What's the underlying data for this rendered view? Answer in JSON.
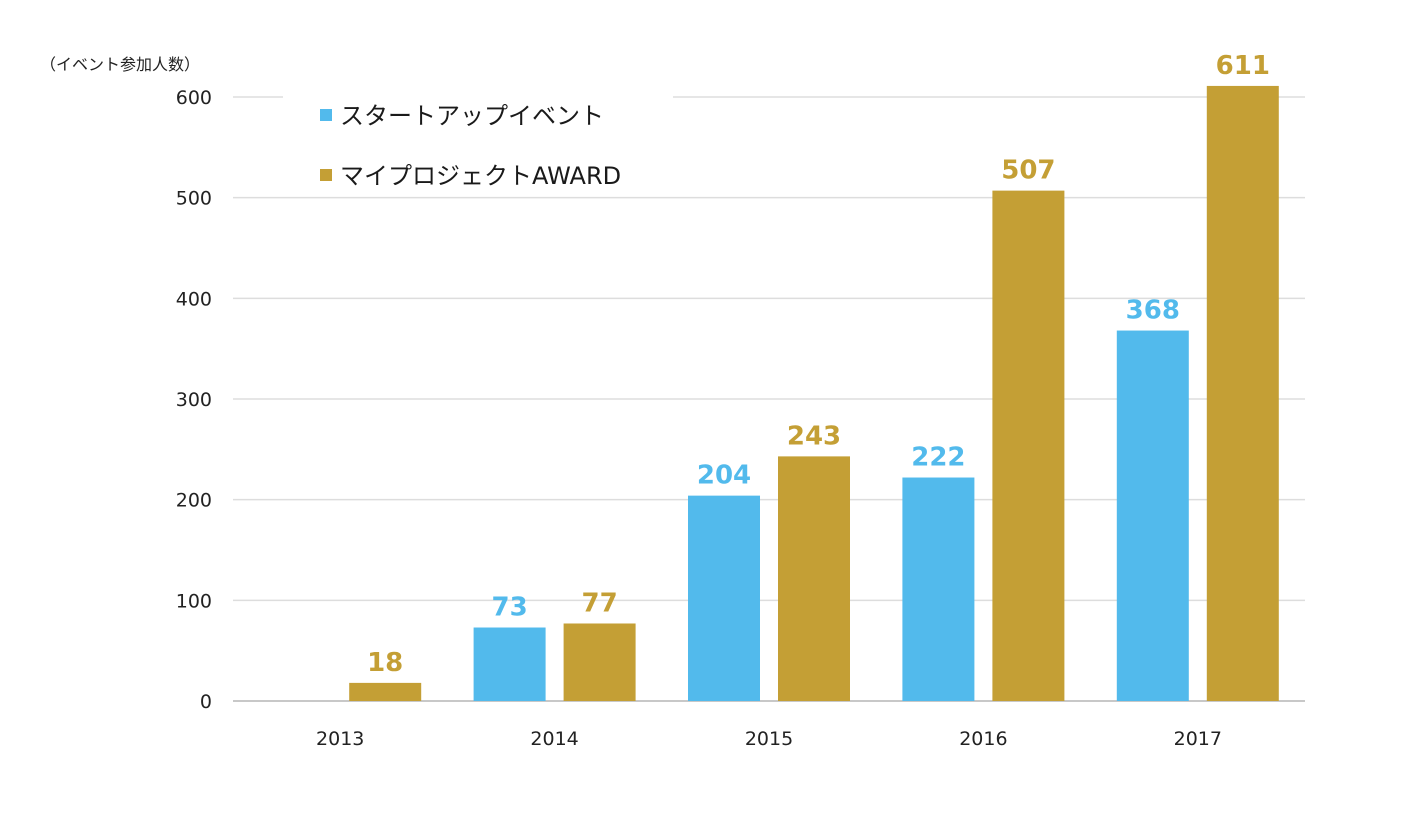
{
  "chart_data": {
    "type": "bar",
    "title": "",
    "ylabel": "（イベント参加人数）",
    "xlabel": "",
    "categories": [
      "2013",
      "2014",
      "2015",
      "2016",
      "2017"
    ],
    "series": [
      {
        "name": "スタートアップイベント",
        "color": "#52BAEC",
        "values": [
          null,
          73,
          204,
          222,
          368
        ]
      },
      {
        "name": "マイプロジェクトAWARD",
        "color": "#C49F35",
        "values": [
          18,
          77,
          243,
          507,
          611
        ]
      }
    ],
    "ylim": [
      0,
      600
    ],
    "yticks": [
      0,
      100,
      200,
      300,
      400,
      500,
      600
    ],
    "grid": true,
    "legend_position": "top-left"
  }
}
